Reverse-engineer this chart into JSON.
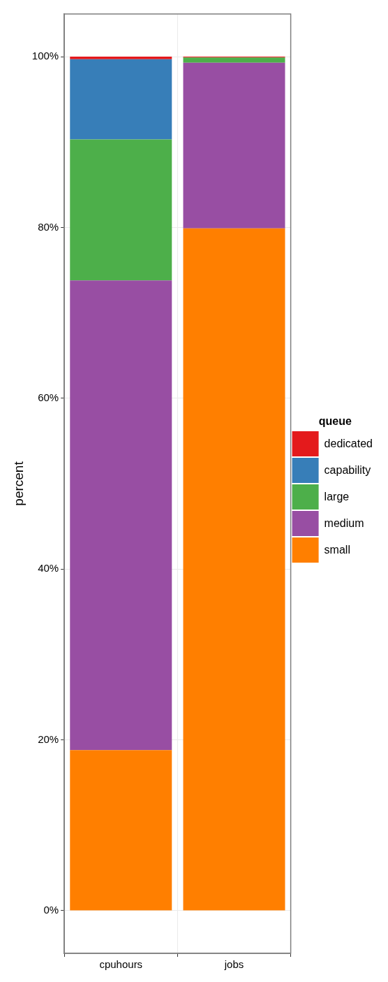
{
  "chart_data": {
    "type": "bar",
    "stacked": true,
    "categories": [
      "cpuhours",
      "jobs"
    ],
    "ylabel": "percent",
    "legend_title": "queue",
    "legend": "right",
    "grid": true,
    "ylim": [
      -5,
      105
    ],
    "yticks": [
      {
        "value": 0,
        "label": "0%"
      },
      {
        "value": 20,
        "label": "20%"
      },
      {
        "value": 40,
        "label": "40%"
      },
      {
        "value": 60,
        "label": "60%"
      },
      {
        "value": 80,
        "label": "80%"
      },
      {
        "value": 100,
        "label": "100%"
      }
    ],
    "series": [
      {
        "name": "small",
        "color": "#ff7f00",
        "values": [
          18.8,
          79.9
        ]
      },
      {
        "name": "medium",
        "color": "#984ea3",
        "values": [
          55.0,
          19.4
        ]
      },
      {
        "name": "large",
        "color": "#4daf4a",
        "values": [
          16.5,
          0.6
        ]
      },
      {
        "name": "capability",
        "color": "#377eb8",
        "values": [
          9.4,
          0
        ]
      },
      {
        "name": "dedicated",
        "color": "#e41a1c",
        "values": [
          0.3,
          0.1
        ]
      }
    ]
  }
}
